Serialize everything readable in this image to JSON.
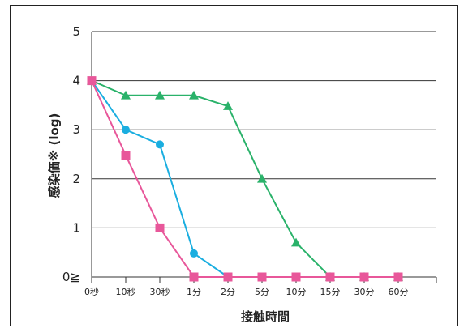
{
  "chart_data": {
    "type": "line",
    "xlabel": "接触時間",
    "ylabel": "感染価※ (log)",
    "categories": [
      "0秒",
      "10秒",
      "30秒",
      "1分",
      "2分",
      "5分",
      "10分",
      "15分",
      "30分",
      "60分"
    ],
    "ylim": [
      0,
      5
    ],
    "yticks": [
      "0≧",
      "1",
      "2",
      "3",
      "4",
      "5"
    ],
    "grid": "horizontal",
    "series": [
      {
        "values": [
          4.0,
          3.7,
          3.7,
          3.7,
          3.48,
          2.0,
          0.7,
          0,
          0,
          0
        ],
        "color": "#2ab26a",
        "marker": "triangle"
      },
      {
        "values": [
          4.0,
          3.0,
          2.7,
          0.48,
          0,
          0,
          0,
          0,
          0,
          0
        ],
        "color": "#1aaee0",
        "marker": "circle"
      },
      {
        "values": [
          4.0,
          2.48,
          1.0,
          0,
          0,
          0,
          0,
          0,
          0,
          0
        ],
        "color": "#e8579a",
        "marker": "square"
      }
    ]
  }
}
